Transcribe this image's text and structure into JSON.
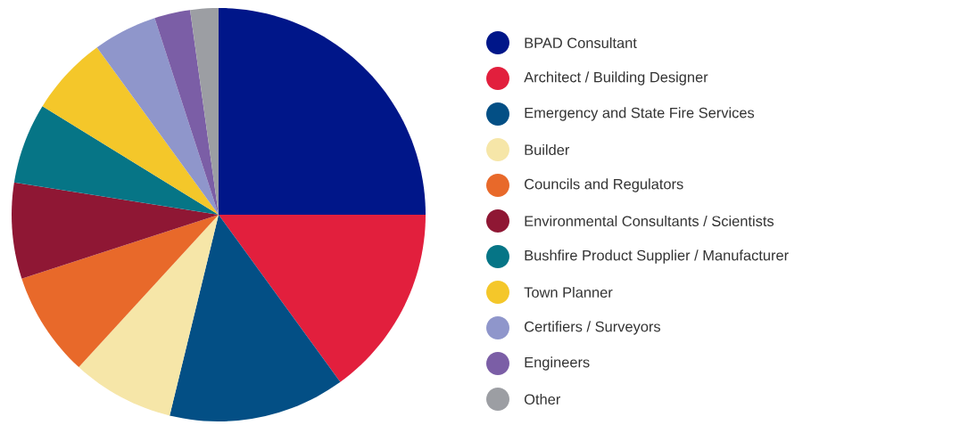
{
  "chart_data": {
    "type": "pie",
    "legend": "right",
    "categories": [
      "BPAD Consultant",
      "Architect / Building Designer",
      "Emergency and State Fire Services",
      "Builder",
      "Councils and Regulators",
      "Environmental Consultants / Scientists",
      "Bushfire Product Supplier / Manufacturer",
      "Town Planner",
      "Certifiers / Surveyors",
      "Engineers",
      "Other"
    ],
    "values": [
      25,
      15,
      13.8,
      8,
      8.2,
      7.5,
      6.3,
      6.2,
      5,
      2.8,
      2.2
    ],
    "colors": [
      "#001689",
      "#e21f3d",
      "#034f85",
      "#f6e6a8",
      "#e8692a",
      "#8f1734",
      "#067586",
      "#f4c72a",
      "#8f96cb",
      "#7b5ea6",
      "#9c9ea3"
    ]
  }
}
